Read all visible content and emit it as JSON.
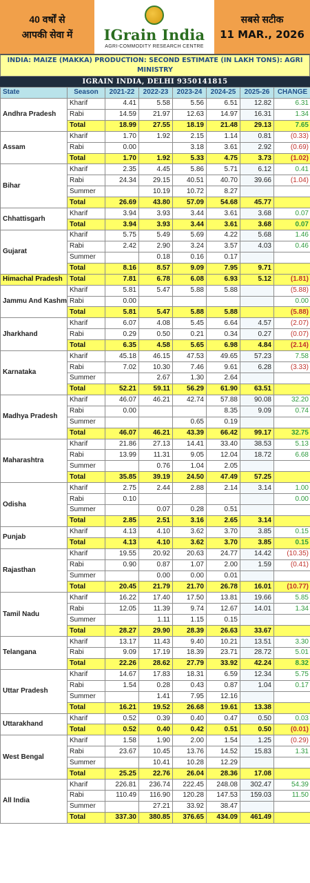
{
  "header": {
    "left_line1": "40 वर्षों से",
    "left_line2": "आपकी सेवा में",
    "logo_title": "IGrain India",
    "logo_subtitle": "AGRI-COMMODITY RESEARCH CENTRE",
    "right_line1": "सबसे सटीक",
    "date": "11 MAR., 2026"
  },
  "title": "INDIA: MAIZE (MAKKA) PRODUCTION: SECOND ESTIMATE (IN LAKH TONS): AGRI MINISTRY",
  "contact": "IGRAIN INDIA, DELHI 9350141815",
  "columns": [
    "State",
    "Season",
    "2021-22",
    "2022-23",
    "2023-24",
    "2024-25",
    "2025-26",
    "CHANGE"
  ],
  "states": [
    {
      "name": "Andhra Pradesh",
      "rows": [
        {
          "season": "Kharif",
          "v": [
            "4.41",
            "5.58",
            "5.56",
            "6.51",
            "12.82"
          ],
          "change": "6.31",
          "sign": "pos"
        },
        {
          "season": "Rabi",
          "v": [
            "14.59",
            "21.97",
            "12.63",
            "14.97",
            "16.31"
          ],
          "change": "1.34",
          "sign": "pos"
        },
        {
          "season": "Total",
          "v": [
            "18.99",
            "27.55",
            "18.19",
            "21.48",
            "29.13"
          ],
          "change": "7.65",
          "sign": "pos"
        }
      ]
    },
    {
      "name": "Assam",
      "rows": [
        {
          "season": "Kharif",
          "v": [
            "1.70",
            "1.92",
            "2.15",
            "1.14",
            "0.81"
          ],
          "change": "(0.33)",
          "sign": "neg"
        },
        {
          "season": "Rabi",
          "v": [
            "0.00",
            "",
            "3.18",
            "3.61",
            "2.92"
          ],
          "change": "(0.69)",
          "sign": "neg"
        },
        {
          "season": "Total",
          "v": [
            "1.70",
            "1.92",
            "5.33",
            "4.75",
            "3.73"
          ],
          "change": "(1.02)",
          "sign": "neg"
        }
      ]
    },
    {
      "name": "Bihar",
      "rows": [
        {
          "season": "Kharif",
          "v": [
            "2.35",
            "4.45",
            "5.86",
            "5.71",
            "6.12"
          ],
          "change": "0.41",
          "sign": "pos"
        },
        {
          "season": "Rabi",
          "v": [
            "24.34",
            "29.15",
            "40.51",
            "40.70",
            "39.66"
          ],
          "change": "(1.04)",
          "sign": "neg"
        },
        {
          "season": "Summer",
          "v": [
            "",
            "10.19",
            "10.72",
            "8.27",
            ""
          ],
          "change": "",
          "sign": ""
        },
        {
          "season": "Total",
          "v": [
            "26.69",
            "43.80",
            "57.09",
            "54.68",
            "45.77"
          ],
          "change": "",
          "sign": ""
        }
      ]
    },
    {
      "name": "Chhattisgarh",
      "rows": [
        {
          "season": "Kharif",
          "v": [
            "3.94",
            "3.93",
            "3.44",
            "3.61",
            "3.68"
          ],
          "change": "0.07",
          "sign": "pos"
        },
        {
          "season": "Total",
          "v": [
            "3.94",
            "3.93",
            "3.44",
            "3.61",
            "3.68"
          ],
          "change": "0.07",
          "sign": "pos"
        }
      ]
    },
    {
      "name": "Gujarat",
      "rows": [
        {
          "season": "Kharif",
          "v": [
            "5.75",
            "5.49",
            "5.69",
            "4.22",
            "5.68"
          ],
          "change": "1.46",
          "sign": "pos"
        },
        {
          "season": "Rabi",
          "v": [
            "2.42",
            "2.90",
            "3.24",
            "3.57",
            "4.03"
          ],
          "change": "0.46",
          "sign": "pos"
        },
        {
          "season": "Summer",
          "v": [
            "",
            "0.18",
            "0.16",
            "0.17",
            ""
          ],
          "change": "",
          "sign": ""
        },
        {
          "season": "Total",
          "v": [
            "8.16",
            "8.57",
            "9.09",
            "7.95",
            "9.71"
          ],
          "change": "",
          "sign": ""
        }
      ]
    },
    {
      "name": "Himachal Pradesh",
      "rows": [
        {
          "season": "Total",
          "v": [
            "7.81",
            "6.78",
            "6.08",
            "6.93",
            "5.12"
          ],
          "change": "(1.81)",
          "sign": "neg"
        }
      ]
    },
    {
      "name": "Jammu And Kashmir",
      "rows": [
        {
          "season": "Kharif",
          "v": [
            "5.81",
            "5.47",
            "5.88",
            "5.88",
            ""
          ],
          "change": "(5.88)",
          "sign": "neg"
        },
        {
          "season": "Rabi",
          "v": [
            "0.00",
            "",
            "",
            "",
            ""
          ],
          "change": "0.00",
          "sign": "pos"
        },
        {
          "season": "Total",
          "v": [
            "5.81",
            "5.47",
            "5.88",
            "5.88",
            ""
          ],
          "change": "(5.88)",
          "sign": "neg"
        }
      ]
    },
    {
      "name": "Jharkhand",
      "rows": [
        {
          "season": "Kharif",
          "v": [
            "6.07",
            "4.08",
            "5.45",
            "6.64",
            "4.57"
          ],
          "change": "(2.07)",
          "sign": "neg"
        },
        {
          "season": "Rabi",
          "v": [
            "0.29",
            "0.50",
            "0.21",
            "0.34",
            "0.27"
          ],
          "change": "(0.07)",
          "sign": "neg"
        },
        {
          "season": "Total",
          "v": [
            "6.35",
            "4.58",
            "5.65",
            "6.98",
            "4.84"
          ],
          "change": "(2.14)",
          "sign": "neg"
        }
      ]
    },
    {
      "name": "Karnataka",
      "rows": [
        {
          "season": "Kharif",
          "v": [
            "45.18",
            "46.15",
            "47.53",
            "49.65",
            "57.23"
          ],
          "change": "7.58",
          "sign": "pos"
        },
        {
          "season": "Rabi",
          "v": [
            "7.02",
            "10.30",
            "7.46",
            "9.61",
            "6.28"
          ],
          "change": "(3.33)",
          "sign": "neg"
        },
        {
          "season": "Summer",
          "v": [
            "",
            "2.67",
            "1.30",
            "2.64",
            ""
          ],
          "change": "",
          "sign": ""
        },
        {
          "season": "Total",
          "v": [
            "52.21",
            "59.11",
            "56.29",
            "61.90",
            "63.51"
          ],
          "change": "",
          "sign": ""
        }
      ]
    },
    {
      "name": "Madhya Pradesh",
      "rows": [
        {
          "season": "Kharif",
          "v": [
            "46.07",
            "46.21",
            "42.74",
            "57.88",
            "90.08"
          ],
          "change": "32.20",
          "sign": "pos"
        },
        {
          "season": "Rabi",
          "v": [
            "0.00",
            "",
            "",
            "8.35",
            "9.09"
          ],
          "change": "0.74",
          "sign": "pos"
        },
        {
          "season": "Summer",
          "v": [
            "",
            "",
            "0.65",
            "0.19",
            ""
          ],
          "change": "",
          "sign": ""
        },
        {
          "season": "Total",
          "v": [
            "46.07",
            "46.21",
            "43.39",
            "66.42",
            "99.17"
          ],
          "change": "32.75",
          "sign": "pos"
        }
      ]
    },
    {
      "name": "Maharashtra",
      "rows": [
        {
          "season": "Kharif",
          "v": [
            "21.86",
            "27.13",
            "14.41",
            "33.40",
            "38.53"
          ],
          "change": "5.13",
          "sign": "pos"
        },
        {
          "season": "Rabi",
          "v": [
            "13.99",
            "11.31",
            "9.05",
            "12.04",
            "18.72"
          ],
          "change": "6.68",
          "sign": "pos"
        },
        {
          "season": "Summer",
          "v": [
            "",
            "0.76",
            "1.04",
            "2.05",
            ""
          ],
          "change": "",
          "sign": ""
        },
        {
          "season": "Total",
          "v": [
            "35.85",
            "39.19",
            "24.50",
            "47.49",
            "57.25"
          ],
          "change": "",
          "sign": ""
        }
      ]
    },
    {
      "name": "Odisha",
      "rows": [
        {
          "season": "Kharif",
          "v": [
            "2.75",
            "2.44",
            "2.88",
            "2.14",
            "3.14"
          ],
          "change": "1.00",
          "sign": "pos"
        },
        {
          "season": "Rabi",
          "v": [
            "0.10",
            "",
            "",
            "",
            ""
          ],
          "change": "0.00",
          "sign": "pos"
        },
        {
          "season": "Summer",
          "v": [
            "",
            "0.07",
            "0.28",
            "0.51",
            ""
          ],
          "change": "",
          "sign": ""
        },
        {
          "season": "Total",
          "v": [
            "2.85",
            "2.51",
            "3.16",
            "2.65",
            "3.14"
          ],
          "change": "",
          "sign": ""
        }
      ]
    },
    {
      "name": "Punjab",
      "rows": [
        {
          "season": "Kharif",
          "v": [
            "4.13",
            "4.10",
            "3.62",
            "3.70",
            "3.85"
          ],
          "change": "0.15",
          "sign": "pos"
        },
        {
          "season": "Total",
          "v": [
            "4.13",
            "4.10",
            "3.62",
            "3.70",
            "3.85"
          ],
          "change": "0.15",
          "sign": "pos"
        }
      ]
    },
    {
      "name": "Rajasthan",
      "rows": [
        {
          "season": "Kharif",
          "v": [
            "19.55",
            "20.92",
            "20.63",
            "24.77",
            "14.42"
          ],
          "change": "(10.35)",
          "sign": "neg"
        },
        {
          "season": "Rabi",
          "v": [
            "0.90",
            "0.87",
            "1.07",
            "2.00",
            "1.59"
          ],
          "change": "(0.41)",
          "sign": "neg"
        },
        {
          "season": "Summer",
          "v": [
            "",
            "0.00",
            "0.00",
            "0.01",
            ""
          ],
          "change": "",
          "sign": ""
        },
        {
          "season": "Total",
          "v": [
            "20.45",
            "21.79",
            "21.70",
            "26.78",
            "16.01"
          ],
          "change": "(10.77)",
          "sign": "neg"
        }
      ]
    },
    {
      "name": "Tamil Nadu",
      "rows": [
        {
          "season": "Kharif",
          "v": [
            "16.22",
            "17.40",
            "17.50",
            "13.81",
            "19.66"
          ],
          "change": "5.85",
          "sign": "pos"
        },
        {
          "season": "Rabi",
          "v": [
            "12.05",
            "11.39",
            "9.74",
            "12.67",
            "14.01"
          ],
          "change": "1.34",
          "sign": "pos"
        },
        {
          "season": "Summer",
          "v": [
            "",
            "1.11",
            "1.15",
            "0.15",
            ""
          ],
          "change": "",
          "sign": ""
        },
        {
          "season": "Total",
          "v": [
            "28.27",
            "29.90",
            "28.39",
            "26.63",
            "33.67"
          ],
          "change": "",
          "sign": ""
        }
      ]
    },
    {
      "name": "Telangana",
      "rows": [
        {
          "season": "Kharif",
          "v": [
            "13.17",
            "11.43",
            "9.40",
            "10.21",
            "13.51"
          ],
          "change": "3.30",
          "sign": "pos"
        },
        {
          "season": "Rabi",
          "v": [
            "9.09",
            "17.19",
            "18.39",
            "23.71",
            "28.72"
          ],
          "change": "5.01",
          "sign": "pos"
        },
        {
          "season": "Total",
          "v": [
            "22.26",
            "28.62",
            "27.79",
            "33.92",
            "42.24"
          ],
          "change": "8.32",
          "sign": "pos"
        }
      ]
    },
    {
      "name": "Uttar Pradesh",
      "rows": [
        {
          "season": "Kharif",
          "v": [
            "14.67",
            "17.83",
            "18.31",
            "6.59",
            "12.34"
          ],
          "change": "5.75",
          "sign": "pos"
        },
        {
          "season": "Rabi",
          "v": [
            "1.54",
            "0.28",
            "0.43",
            "0.87",
            "1.04"
          ],
          "change": "0.17",
          "sign": "pos"
        },
        {
          "season": "Summer",
          "v": [
            "",
            "1.41",
            "7.95",
            "12.16",
            ""
          ],
          "change": "",
          "sign": ""
        },
        {
          "season": "Total",
          "v": [
            "16.21",
            "19.52",
            "26.68",
            "19.61",
            "13.38"
          ],
          "change": "",
          "sign": ""
        }
      ]
    },
    {
      "name": "Uttarakhand",
      "rows": [
        {
          "season": "Kharif",
          "v": [
            "0.52",
            "0.39",
            "0.40",
            "0.47",
            "0.50"
          ],
          "change": "0.03",
          "sign": "pos"
        },
        {
          "season": "Total",
          "v": [
            "0.52",
            "0.40",
            "0.42",
            "0.51",
            "0.50"
          ],
          "change": "(0.01)",
          "sign": "neg"
        }
      ]
    },
    {
      "name": "West Bengal",
      "rows": [
        {
          "season": "Kharif",
          "v": [
            "1.58",
            "1.90",
            "2.00",
            "1.54",
            "1.25"
          ],
          "change": "(0.29)",
          "sign": "neg"
        },
        {
          "season": "Rabi",
          "v": [
            "23.67",
            "10.45",
            "13.76",
            "14.52",
            "15.83"
          ],
          "change": "1.31",
          "sign": "pos"
        },
        {
          "season": "Summer",
          "v": [
            "",
            "10.41",
            "10.28",
            "12.29",
            ""
          ],
          "change": "",
          "sign": ""
        },
        {
          "season": "Total",
          "v": [
            "25.25",
            "22.76",
            "26.04",
            "28.36",
            "17.08"
          ],
          "change": "",
          "sign": ""
        }
      ]
    },
    {
      "name": "All India",
      "rows": [
        {
          "season": "Kharif",
          "v": [
            "226.81",
            "236.74",
            "222.45",
            "248.08",
            "302.47"
          ],
          "change": "54.39",
          "sign": "pos"
        },
        {
          "season": "Rabi",
          "v": [
            "110.49",
            "116.90",
            "120.28",
            "147.53",
            "159.03"
          ],
          "change": "11.50",
          "sign": "pos"
        },
        {
          "season": "Summer",
          "v": [
            "",
            "27.21",
            "33.92",
            "38.47",
            ""
          ],
          "change": "",
          "sign": ""
        },
        {
          "season": "Total",
          "v": [
            "337.30",
            "380.85",
            "376.65",
            "434.09",
            "461.49"
          ],
          "change": "",
          "sign": ""
        }
      ]
    }
  ]
}
